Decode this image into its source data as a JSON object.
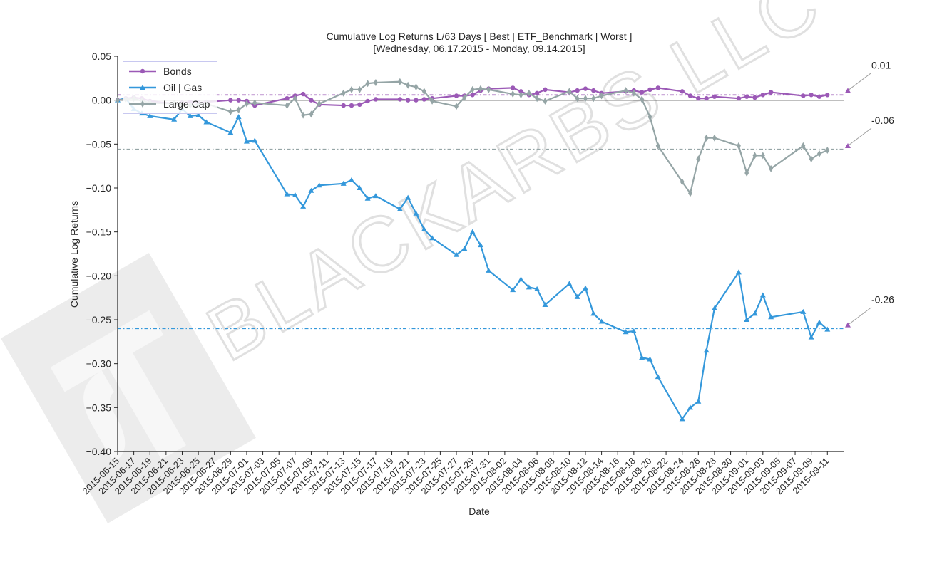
{
  "chart_data": {
    "type": "line",
    "title": "Cumulative Log Returns L/63 Days [ Best | ETF_Benchmark | Worst ]",
    "subtitle": "[Wednesday, 06.17.2015 - Monday, 09.14.2015]",
    "xlabel": "Date",
    "ylabel": "Cumulative Log Returns",
    "ylim": [
      -0.4,
      0.05
    ],
    "yticks": [
      "0.05",
      "0.00",
      "−0.05",
      "−0.10",
      "−0.15",
      "−0.20",
      "−0.25",
      "−0.30",
      "−0.35",
      "−0.40"
    ],
    "ytick_values": [
      0.05,
      0.0,
      -0.05,
      -0.1,
      -0.15,
      -0.2,
      -0.25,
      -0.3,
      -0.35,
      -0.4
    ],
    "xticks": [
      "2015-06-15",
      "2015-06-17",
      "2015-06-19",
      "2015-06-21",
      "2015-06-23",
      "2015-06-25",
      "2015-06-27",
      "2015-06-29",
      "2015-07-01",
      "2015-07-03",
      "2015-07-05",
      "2015-07-07",
      "2015-07-09",
      "2015-07-11",
      "2015-07-13",
      "2015-07-15",
      "2015-07-17",
      "2015-07-19",
      "2015-07-21",
      "2015-07-23",
      "2015-07-25",
      "2015-07-27",
      "2015-07-29",
      "2015-07-31",
      "2015-08-02",
      "2015-08-04",
      "2015-08-06",
      "2015-08-08",
      "2015-08-10",
      "2015-08-12",
      "2015-08-14",
      "2015-08-16",
      "2015-08-18",
      "2015-08-20",
      "2015-08-22",
      "2015-08-24",
      "2015-08-26",
      "2015-08-28",
      "2015-08-30",
      "2015-09-01",
      "2015-09-03",
      "2015-09-05",
      "2015-09-07",
      "2015-09-09",
      "2015-09-11"
    ],
    "legend_position": "upper left",
    "grid": false,
    "dates": [
      "2015-06-15",
      "2015-06-16",
      "2015-06-17",
      "2015-06-18",
      "2015-06-19",
      "2015-06-22",
      "2015-06-23",
      "2015-06-24",
      "2015-06-25",
      "2015-06-26",
      "2015-06-29",
      "2015-06-30",
      "2015-07-01",
      "2015-07-02",
      "2015-07-06",
      "2015-07-07",
      "2015-07-08",
      "2015-07-09",
      "2015-07-10",
      "2015-07-13",
      "2015-07-14",
      "2015-07-15",
      "2015-07-16",
      "2015-07-17",
      "2015-07-20",
      "2015-07-21",
      "2015-07-22",
      "2015-07-23",
      "2015-07-24",
      "2015-07-27",
      "2015-07-28",
      "2015-07-29",
      "2015-07-30",
      "2015-07-31",
      "2015-08-03",
      "2015-08-04",
      "2015-08-05",
      "2015-08-06",
      "2015-08-07",
      "2015-08-10",
      "2015-08-11",
      "2015-08-12",
      "2015-08-13",
      "2015-08-14",
      "2015-08-17",
      "2015-08-18",
      "2015-08-19",
      "2015-08-20",
      "2015-08-21",
      "2015-08-24",
      "2015-08-25",
      "2015-08-26",
      "2015-08-27",
      "2015-08-28",
      "2015-08-31",
      "2015-09-01",
      "2015-09-02",
      "2015-09-03",
      "2015-09-04",
      "2015-09-08",
      "2015-09-09",
      "2015-09-10",
      "2015-09-11"
    ],
    "series": [
      {
        "name": "Bonds",
        "color": "#9b59b6",
        "marker": "circle",
        "values": [
          0.0,
          0.002,
          0.003,
          0.002,
          -0.001,
          -0.004,
          -0.003,
          -0.002,
          -0.003,
          -0.002,
          0.0,
          0.0,
          -0.001,
          -0.006,
          0.002,
          0.005,
          0.007,
          0.0,
          -0.005,
          -0.006,
          -0.006,
          -0.005,
          -0.001,
          0.001,
          0.001,
          0.0,
          0.0,
          0.001,
          0.002,
          0.005,
          0.005,
          0.006,
          0.011,
          0.013,
          0.014,
          0.01,
          0.006,
          0.008,
          0.012,
          0.009,
          0.011,
          0.013,
          0.011,
          0.008,
          0.01,
          0.011,
          0.009,
          0.012,
          0.014,
          0.01,
          0.005,
          0.002,
          0.002,
          0.004,
          0.002,
          0.004,
          0.003,
          0.006,
          0.009,
          0.005,
          0.006,
          0.004,
          0.006
        ]
      },
      {
        "name": "Oil | Gas",
        "color": "#3498db",
        "marker": "triangle",
        "values": [
          0.0,
          0.002,
          -0.01,
          -0.015,
          -0.018,
          -0.022,
          -0.01,
          -0.018,
          -0.017,
          -0.025,
          -0.037,
          -0.019,
          -0.047,
          -0.046,
          -0.107,
          -0.108,
          -0.121,
          -0.103,
          -0.097,
          -0.095,
          -0.091,
          -0.1,
          -0.112,
          -0.109,
          -0.124,
          -0.111,
          -0.129,
          -0.147,
          -0.157,
          -0.176,
          -0.169,
          -0.15,
          -0.165,
          -0.194,
          -0.216,
          -0.204,
          -0.213,
          -0.215,
          -0.233,
          -0.209,
          -0.224,
          -0.214,
          -0.243,
          -0.252,
          -0.264,
          -0.263,
          -0.293,
          -0.295,
          -0.315,
          -0.363,
          -0.35,
          -0.343,
          -0.285,
          -0.237,
          -0.196,
          -0.25,
          -0.243,
          -0.222,
          -0.247,
          -0.241,
          -0.27,
          -0.253,
          -0.261
        ]
      },
      {
        "name": "Large Cap",
        "color": "#95a5a6",
        "marker": "diamond",
        "values": [
          0.0,
          0.001,
          0.002,
          -0.001,
          -0.003,
          -0.004,
          -0.005,
          -0.006,
          -0.005,
          -0.004,
          -0.013,
          -0.011,
          -0.004,
          -0.003,
          -0.006,
          0.002,
          -0.017,
          -0.016,
          -0.004,
          0.008,
          0.012,
          0.012,
          0.019,
          0.02,
          0.021,
          0.017,
          0.015,
          0.01,
          -0.001,
          -0.007,
          0.003,
          0.012,
          0.013,
          0.012,
          0.007,
          0.006,
          0.008,
          0.002,
          -0.001,
          0.01,
          0.002,
          0.002,
          0.002,
          0.005,
          0.011,
          0.008,
          0.001,
          -0.019,
          -0.052,
          -0.093,
          -0.106,
          -0.067,
          -0.043,
          -0.043,
          -0.052,
          -0.083,
          -0.063,
          -0.063,
          -0.078,
          -0.052,
          -0.067,
          -0.061,
          -0.057
        ]
      }
    ],
    "reference_lines": [
      {
        "series": "Bonds",
        "value": 0.006,
        "style": "dash-dot",
        "color": "#9b59b6"
      },
      {
        "series": "Large Cap",
        "value": -0.056,
        "style": "dash-dot",
        "color": "#95a5a6"
      },
      {
        "series": "Oil | Gas",
        "value": -0.26,
        "style": "dash-dot",
        "color": "#3498db"
      },
      {
        "series": "zero",
        "value": 0.0,
        "style": "solid",
        "color": "#000000"
      }
    ],
    "annotations": [
      {
        "text": "0.01",
        "value": 0.01
      },
      {
        "text": "-0.06",
        "value": -0.053
      },
      {
        "text": "-0.26",
        "value": -0.257
      }
    ],
    "watermark": "BLACKARBS LLC"
  }
}
